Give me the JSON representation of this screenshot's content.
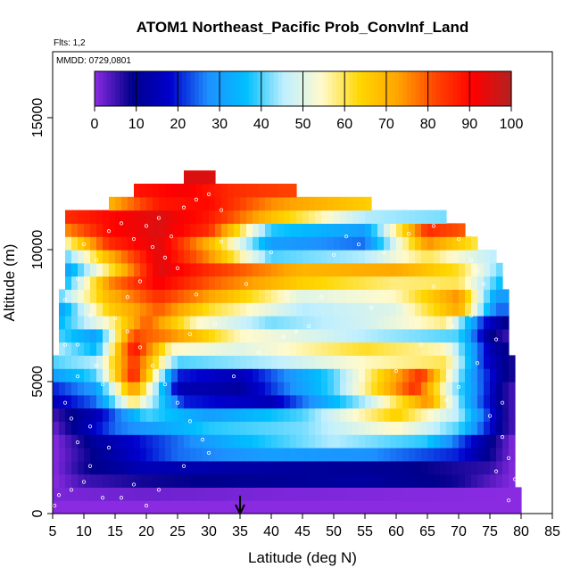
{
  "chart_data": {
    "type": "heatmap",
    "title": "ATOM1 Northeast_Pacific Prob_ConvInf_Land",
    "subtitle_flights": "Flts: 1,2",
    "subtitle_dates": "MMDD: 0729,0801",
    "xlabel": "Latitude (deg N)",
    "ylabel": "Altitude (m)",
    "xlim": [
      5,
      85
    ],
    "ylim": [
      0,
      17500
    ],
    "xticks": [
      "5",
      "10",
      "15",
      "20",
      "25",
      "30",
      "35",
      "40",
      "45",
      "50",
      "55",
      "60",
      "65",
      "70",
      "75",
      "80",
      "85"
    ],
    "yticks": [
      "0",
      "5000",
      "10000",
      "15000"
    ],
    "colorbar": {
      "ticks": [
        "0",
        "10",
        "20",
        "30",
        "40",
        "50",
        "60",
        "70",
        "80",
        "90",
        "100"
      ],
      "range": [
        0,
        100
      ],
      "colors": [
        "#8a2be2",
        "#00008b",
        "#0000cd",
        "#1e90ff",
        "#00bfff",
        "#bfefff",
        "#fffacd",
        "#ffd700",
        "#ffa500",
        "#ff4500",
        "#ff0000",
        "#b22222"
      ]
    },
    "marker_latitude": 35,
    "altitude_layers": [
      {
        "alt": 250,
        "lat_range": [
          5,
          80
        ],
        "knots": [
          [
            5,
            0
          ],
          [
            80,
            0
          ]
        ]
      },
      {
        "alt": 750,
        "lat_range": [
          5,
          80
        ],
        "knots": [
          [
            5,
            1
          ],
          [
            20,
            2
          ],
          [
            40,
            1
          ],
          [
            80,
            0
          ]
        ]
      },
      {
        "alt": 1250,
        "lat_range": [
          5,
          79
        ],
        "knots": [
          [
            5,
            0
          ],
          [
            10,
            5
          ],
          [
            20,
            8
          ],
          [
            35,
            10
          ],
          [
            55,
            12
          ],
          [
            70,
            8
          ],
          [
            79,
            0
          ]
        ]
      },
      {
        "alt": 1750,
        "lat_range": [
          5,
          79
        ],
        "knots": [
          [
            5,
            0
          ],
          [
            10,
            8
          ],
          [
            20,
            15
          ],
          [
            40,
            12
          ],
          [
            60,
            10
          ],
          [
            75,
            6
          ],
          [
            79,
            0
          ]
        ]
      },
      {
        "alt": 2250,
        "lat_range": [
          5,
          79
        ],
        "knots": [
          [
            5,
            0
          ],
          [
            12,
            10
          ],
          [
            25,
            25
          ],
          [
            40,
            30
          ],
          [
            55,
            28
          ],
          [
            70,
            20
          ],
          [
            79,
            0
          ]
        ]
      },
      {
        "alt": 2750,
        "lat_range": [
          5,
          79
        ],
        "knots": [
          [
            5,
            0
          ],
          [
            12,
            12
          ],
          [
            20,
            20
          ],
          [
            35,
            35
          ],
          [
            50,
            45
          ],
          [
            65,
            38
          ],
          [
            75,
            10
          ],
          [
            79,
            0
          ]
        ]
      },
      {
        "alt": 3250,
        "lat_range": [
          5,
          79
        ],
        "knots": [
          [
            5,
            2
          ],
          [
            15,
            25
          ],
          [
            30,
            38
          ],
          [
            45,
            42
          ],
          [
            60,
            55
          ],
          [
            70,
            40
          ],
          [
            78,
            5
          ]
        ]
      },
      {
        "alt": 3750,
        "lat_range": [
          5,
          79
        ],
        "knots": [
          [
            5,
            5
          ],
          [
            12,
            15
          ],
          [
            20,
            40
          ],
          [
            30,
            30
          ],
          [
            45,
            40
          ],
          [
            60,
            65
          ],
          [
            70,
            45
          ],
          [
            78,
            5
          ]
        ]
      },
      {
        "alt": 4250,
        "lat_range": [
          5,
          79
        ],
        "knots": [
          [
            5,
            15
          ],
          [
            12,
            25
          ],
          [
            18,
            60
          ],
          [
            26,
            20
          ],
          [
            40,
            15
          ],
          [
            55,
            45
          ],
          [
            65,
            75
          ],
          [
            72,
            30
          ],
          [
            78,
            5
          ]
        ]
      },
      {
        "alt": 4750,
        "lat_range": [
          5,
          79
        ],
        "knots": [
          [
            5,
            20
          ],
          [
            12,
            30
          ],
          [
            18,
            75
          ],
          [
            25,
            15
          ],
          [
            35,
            12
          ],
          [
            50,
            40
          ],
          [
            63,
            85
          ],
          [
            70,
            40
          ],
          [
            78,
            5
          ]
        ]
      },
      {
        "alt": 5250,
        "lat_range": [
          5,
          79
        ],
        "knots": [
          [
            5,
            30
          ],
          [
            12,
            40
          ],
          [
            18,
            88
          ],
          [
            25,
            20
          ],
          [
            35,
            15
          ],
          [
            50,
            40
          ],
          [
            64,
            85
          ],
          [
            72,
            30
          ],
          [
            78,
            8
          ]
        ]
      },
      {
        "alt": 5750,
        "lat_range": [
          5,
          79
        ],
        "knots": [
          [
            5,
            40
          ],
          [
            12,
            45
          ],
          [
            18,
            85
          ],
          [
            25,
            40
          ],
          [
            40,
            45
          ],
          [
            55,
            55
          ],
          [
            68,
            60
          ],
          [
            74,
            20
          ],
          [
            78,
            8
          ]
        ]
      },
      {
        "alt": 6250,
        "lat_range": [
          6,
          78
        ],
        "knots": [
          [
            6,
            45
          ],
          [
            12,
            35
          ],
          [
            18,
            90
          ],
          [
            24,
            55
          ],
          [
            35,
            50
          ],
          [
            55,
            62
          ],
          [
            68,
            55
          ],
          [
            75,
            15
          ],
          [
            78,
            8
          ]
        ]
      },
      {
        "alt": 6750,
        "lat_range": [
          6,
          78
        ],
        "knots": [
          [
            6,
            40
          ],
          [
            12,
            30
          ],
          [
            18,
            82
          ],
          [
            24,
            75
          ],
          [
            35,
            55
          ],
          [
            55,
            45
          ],
          [
            70,
            40
          ],
          [
            75,
            10
          ],
          [
            78,
            5
          ]
        ]
      },
      {
        "alt": 7250,
        "lat_range": [
          6,
          78
        ],
        "knots": [
          [
            6,
            35
          ],
          [
            14,
            55
          ],
          [
            20,
            80
          ],
          [
            28,
            55
          ],
          [
            40,
            42
          ],
          [
            55,
            48
          ],
          [
            68,
            58
          ],
          [
            74,
            20
          ],
          [
            78,
            8
          ]
        ]
      },
      {
        "alt": 7750,
        "lat_range": [
          6,
          78
        ],
        "knots": [
          [
            6,
            30
          ],
          [
            14,
            65
          ],
          [
            22,
            80
          ],
          [
            30,
            62
          ],
          [
            45,
            45
          ],
          [
            60,
            50
          ],
          [
            70,
            72
          ],
          [
            76,
            25
          ]
        ]
      },
      {
        "alt": 8250,
        "lat_range": [
          6,
          78
        ],
        "knots": [
          [
            6,
            40
          ],
          [
            14,
            70
          ],
          [
            22,
            85
          ],
          [
            32,
            70
          ],
          [
            45,
            50
          ],
          [
            60,
            55
          ],
          [
            70,
            75
          ],
          [
            76,
            30
          ]
        ]
      },
      {
        "alt": 8750,
        "lat_range": [
          7,
          77
        ],
        "knots": [
          [
            7,
            35
          ],
          [
            14,
            75
          ],
          [
            22,
            92
          ],
          [
            30,
            80
          ],
          [
            45,
            65
          ],
          [
            60,
            58
          ],
          [
            70,
            60
          ],
          [
            77,
            35
          ]
        ]
      },
      {
        "alt": 9250,
        "lat_range": [
          7,
          77
        ],
        "knots": [
          [
            7,
            30
          ],
          [
            14,
            60
          ],
          [
            22,
            95
          ],
          [
            30,
            85
          ],
          [
            45,
            70
          ],
          [
            60,
            72
          ],
          [
            70,
            62
          ],
          [
            77,
            40
          ]
        ]
      },
      {
        "alt": 9750,
        "lat_range": [
          7,
          76
        ],
        "knots": [
          [
            7,
            40
          ],
          [
            14,
            70
          ],
          [
            22,
            95
          ],
          [
            30,
            75
          ],
          [
            40,
            40
          ],
          [
            55,
            45
          ],
          [
            65,
            60
          ],
          [
            72,
            50
          ],
          [
            76,
            45
          ]
        ]
      },
      {
        "alt": 10250,
        "lat_range": [
          7,
          73
        ],
        "knots": [
          [
            7,
            55
          ],
          [
            14,
            85
          ],
          [
            22,
            95
          ],
          [
            30,
            70
          ],
          [
            40,
            30
          ],
          [
            55,
            25
          ],
          [
            65,
            75
          ],
          [
            73,
            60
          ]
        ]
      },
      {
        "alt": 10750,
        "lat_range": [
          7,
          71
        ],
        "knots": [
          [
            7,
            75
          ],
          [
            14,
            90
          ],
          [
            22,
            95
          ],
          [
            30,
            85
          ],
          [
            40,
            38
          ],
          [
            55,
            30
          ],
          [
            65,
            85
          ],
          [
            71,
            80
          ]
        ]
      },
      {
        "alt": 11250,
        "lat_range": [
          7,
          68
        ],
        "knots": [
          [
            7,
            85
          ],
          [
            14,
            90
          ],
          [
            22,
            95
          ],
          [
            30,
            88
          ],
          [
            40,
            68
          ],
          [
            55,
            45
          ],
          [
            68,
            42
          ]
        ]
      },
      {
        "alt": 11750,
        "lat_range": [
          14,
          56
        ],
        "knots": [
          [
            14,
            70
          ],
          [
            22,
            88
          ],
          [
            30,
            90
          ],
          [
            40,
            75
          ],
          [
            56,
            65
          ]
        ]
      },
      {
        "alt": 12250,
        "lat_range": [
          18,
          44
        ],
        "knots": [
          [
            18,
            88
          ],
          [
            26,
            92
          ],
          [
            34,
            85
          ],
          [
            44,
            82
          ]
        ]
      },
      {
        "alt": 12750,
        "lat_range": [
          26,
          31
        ],
        "knots": [
          [
            26,
            95
          ],
          [
            31,
            95
          ]
        ]
      }
    ],
    "sample_points": [
      [
        5.3,
        300
      ],
      [
        8,
        900
      ],
      [
        10,
        1200
      ],
      [
        13,
        600
      ],
      [
        9,
        2700
      ],
      [
        11,
        3300
      ],
      [
        7,
        4200
      ],
      [
        9,
        5200
      ],
      [
        12,
        5600
      ],
      [
        9,
        6400
      ],
      [
        11,
        7500
      ],
      [
        7,
        8100
      ],
      [
        9,
        8900
      ],
      [
        12,
        9600
      ],
      [
        10,
        10200
      ],
      [
        14,
        10700
      ],
      [
        16,
        11000
      ],
      [
        18,
        10400
      ],
      [
        20,
        10900
      ],
      [
        22,
        11200
      ],
      [
        24,
        10500
      ],
      [
        26,
        11600
      ],
      [
        28,
        11900
      ],
      [
        30,
        12100
      ],
      [
        32,
        11500
      ],
      [
        21,
        10100
      ],
      [
        23,
        9700
      ],
      [
        25,
        9300
      ],
      [
        19,
        8800
      ],
      [
        17,
        8200
      ],
      [
        15,
        7400
      ],
      [
        17,
        6900
      ],
      [
        19,
        6300
      ],
      [
        21,
        5600
      ],
      [
        23,
        4900
      ],
      [
        25,
        4200
      ],
      [
        27,
        3500
      ],
      [
        29,
        2800
      ],
      [
        16,
        600
      ],
      [
        18,
        1100
      ],
      [
        20,
        300
      ],
      [
        22,
        900
      ],
      [
        26,
        1800
      ],
      [
        30,
        2300
      ],
      [
        34,
        5200
      ],
      [
        38,
        6100
      ],
      [
        42,
        6700
      ],
      [
        46,
        7100
      ],
      [
        50,
        9800
      ],
      [
        54,
        10200
      ],
      [
        58,
        9900
      ],
      [
        62,
        10600
      ],
      [
        66,
        10900
      ],
      [
        70,
        10400
      ],
      [
        72,
        9600
      ],
      [
        74,
        8700
      ],
      [
        72,
        7500
      ],
      [
        76,
        6600
      ],
      [
        73,
        5700
      ],
      [
        70,
        4800
      ],
      [
        68,
        4300
      ],
      [
        75,
        3700
      ],
      [
        77,
        2900
      ],
      [
        78,
        2100
      ],
      [
        79,
        1300
      ],
      [
        78,
        500
      ],
      [
        77,
        4200
      ],
      [
        73,
        9200
      ],
      [
        75,
        10100
      ],
      [
        64,
        6400
      ],
      [
        60,
        5400
      ],
      [
        56,
        7800
      ],
      [
        48,
        8200
      ],
      [
        44,
        6900
      ],
      [
        36,
        8700
      ],
      [
        31,
        7200
      ],
      [
        27,
        6800
      ],
      [
        13,
        4900
      ],
      [
        8,
        3600
      ],
      [
        11,
        1800
      ],
      [
        14,
        2500
      ],
      [
        28,
        8300
      ],
      [
        32,
        10300
      ],
      [
        40,
        9900
      ],
      [
        52,
        10500
      ],
      [
        66,
        8600
      ],
      [
        69,
        7100
      ],
      [
        76,
        1600
      ],
      [
        7,
        6400
      ],
      [
        6,
        700
      ]
    ]
  }
}
